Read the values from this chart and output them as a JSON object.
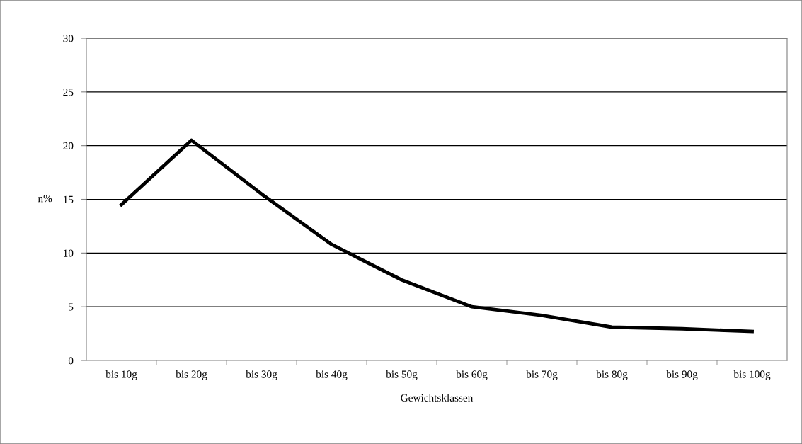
{
  "chart_data": {
    "type": "line",
    "xlabel": "Gewichtsklassen",
    "ylabel": "n%",
    "categories": [
      "bis 10g",
      "bis 20g",
      "bis 30g",
      "bis 40g",
      "bis 50g",
      "bis 60g",
      "bis 70g",
      "bis 80g",
      "bis 90g",
      "bis 100g"
    ],
    "series": [
      {
        "color": "#000000",
        "values": [
          14.5,
          20.5,
          15.5,
          10.8,
          7.5,
          5.0,
          4.2,
          3.1,
          2.95,
          2.7
        ]
      }
    ],
    "ylim": [
      0,
      30
    ],
    "yticks": [
      0,
      5,
      10,
      15,
      20,
      25,
      30
    ],
    "grid": "y",
    "legend": false,
    "marker": "none",
    "line_style": "solid"
  }
}
